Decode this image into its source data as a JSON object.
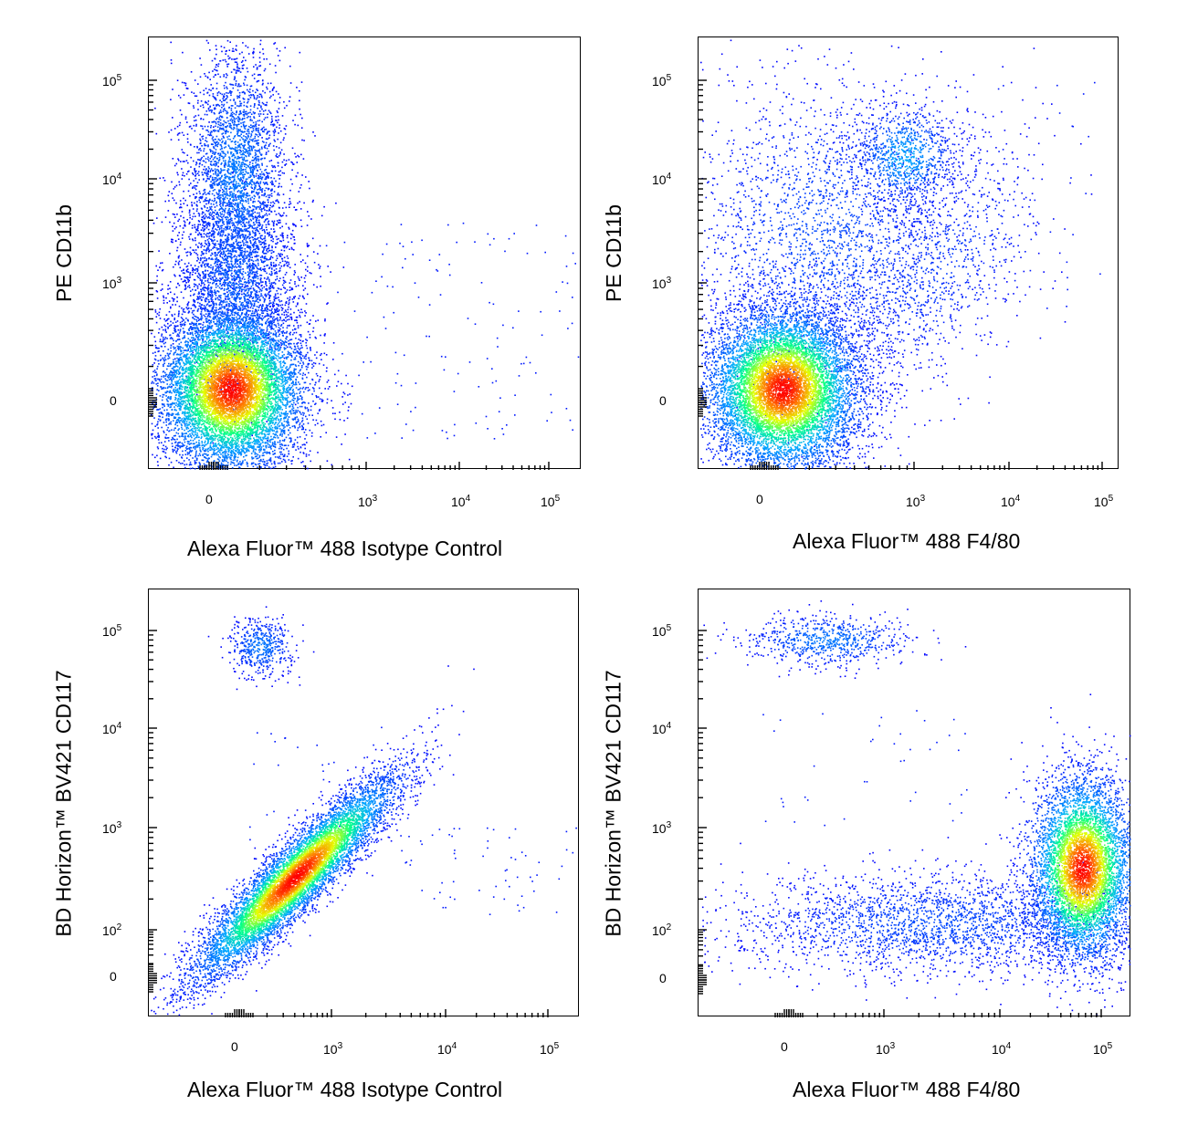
{
  "colors": {
    "low": "#0000ff",
    "mid1": "#00ffff",
    "mid2": "#00ff60",
    "mid3": "#ffff00",
    "high": "#ff0000",
    "axis": "#000000"
  },
  "chart_data": [
    {
      "type": "scatter",
      "subtype": "flow-cytometry-density-dot-plot",
      "xlabel": "Alexa Fluor™ 488 Isotype Control",
      "ylabel": "PE  CD11b",
      "x_scale": "biexponential",
      "y_scale": "biexponential",
      "xticks": [
        "0",
        "10^3",
        "10^4",
        "10^5"
      ],
      "yticks": [
        "0",
        "10^3",
        "10^4",
        "10^5"
      ],
      "populations": [
        {
          "name": "",
          "x": 0,
          "y": 0,
          "density": "high"
        },
        {
          "name": "",
          "x": 0,
          "y": 10000,
          "density": "low"
        }
      ]
    },
    {
      "type": "scatter",
      "subtype": "flow-cytometry-density-dot-plot",
      "xlabel": "Alexa Fluor™ 488  F4/80",
      "ylabel": "PE  CD11b",
      "x_scale": "biexponential",
      "y_scale": "biexponential",
      "xticks": [
        "0",
        "10^3",
        "10^4",
        "10^5"
      ],
      "yticks": [
        "0",
        "10^3",
        "10^4",
        "10^5"
      ],
      "populations": [
        {
          "name": "",
          "x": 0,
          "y": 0,
          "density": "high"
        },
        {
          "name": "",
          "x": 1000,
          "y": 15000,
          "density": "low"
        },
        {
          "name": "",
          "x": 3000,
          "y": 1000,
          "density": "low"
        }
      ]
    },
    {
      "type": "scatter",
      "subtype": "flow-cytometry-density-dot-plot",
      "xlabel": "Alexa Fluor™ 488 Isotype Control",
      "ylabel": "BD Horizon™ BV421  CD117",
      "x_scale": "biexponential",
      "y_scale": "biexponential",
      "xticks": [
        "0",
        "10^3",
        "10^4",
        "10^5"
      ],
      "yticks": [
        "0",
        "10^2",
        "10^3",
        "10^4",
        "10^5"
      ],
      "populations": [
        {
          "name": "",
          "x": 0,
          "y": 60000,
          "density": "low"
        },
        {
          "name": "",
          "x": 700,
          "y": 350,
          "density": "high",
          "shape": "diagonal"
        }
      ]
    },
    {
      "type": "scatter",
      "subtype": "flow-cytometry-density-dot-plot",
      "xlabel": "Alexa Fluor™ 488  F4/80",
      "ylabel": "BD Horizon™ BV421  CD117",
      "x_scale": "biexponential",
      "y_scale": "biexponential",
      "xticks": [
        "0",
        "10^3",
        "10^4",
        "10^5"
      ],
      "yticks": [
        "0",
        "10^2",
        "10^3",
        "10^4",
        "10^5"
      ],
      "populations": [
        {
          "name": "",
          "x": 500,
          "y": 60000,
          "density": "low"
        },
        {
          "name": "",
          "x": 3000,
          "y": 120,
          "density": "low"
        },
        {
          "name": "",
          "x": 80000,
          "y": 300,
          "density": "high"
        }
      ]
    }
  ]
}
